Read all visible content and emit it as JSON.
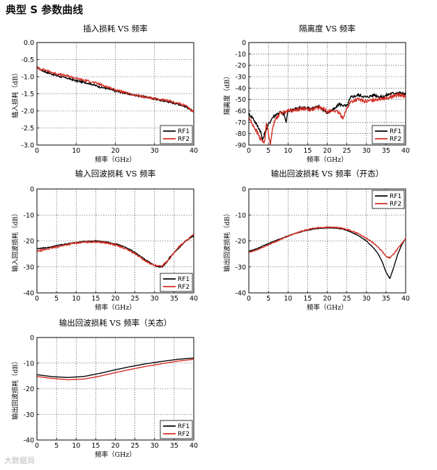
{
  "page": {
    "title": "典型 S 参数曲线"
  },
  "watermark": {
    "text": "大数据局"
  },
  "chart_data": [
    {
      "id": "insertion-loss",
      "type": "line",
      "title": "插入损耗 VS 频率",
      "xlabel": "频率（GHz）",
      "ylabel": "插入损耗（dB）",
      "xlim": [
        0,
        40
      ],
      "ylim": [
        -3,
        0
      ],
      "xticks": [
        0,
        10,
        20,
        30,
        40
      ],
      "yticks": [
        0,
        -0.5,
        -1,
        -1.5,
        -2,
        -2.5,
        -3
      ],
      "ytick_labels": [
        "0.0",
        "-0.5",
        "-1.0",
        "-1.5",
        "-2.0",
        "-2.5",
        "-3.0"
      ],
      "grid": true,
      "legend": "bottom-right",
      "series": [
        {
          "name": "RF1",
          "color": "#000000",
          "noise": 0.025,
          "x": [
            0,
            1,
            2,
            4,
            6,
            8,
            10,
            12,
            14,
            16,
            18,
            20,
            22,
            24,
            26,
            28,
            30,
            32,
            34,
            36,
            38,
            39,
            40
          ],
          "y": [
            -0.72,
            -0.8,
            -0.85,
            -0.93,
            -1.0,
            -1.05,
            -1.12,
            -1.16,
            -1.22,
            -1.3,
            -1.35,
            -1.42,
            -1.47,
            -1.52,
            -1.56,
            -1.6,
            -1.65,
            -1.7,
            -1.75,
            -1.8,
            -1.88,
            -1.95,
            -2.05
          ]
        },
        {
          "name": "RF2",
          "color": "#d42a20",
          "noise": 0.03,
          "x": [
            0,
            1,
            2,
            4,
            6,
            8,
            10,
            12,
            14,
            16,
            18,
            20,
            22,
            24,
            26,
            28,
            30,
            32,
            34,
            36,
            38,
            39,
            40
          ],
          "y": [
            -0.75,
            -0.78,
            -0.8,
            -0.88,
            -0.94,
            -0.98,
            -1.05,
            -1.1,
            -1.15,
            -1.22,
            -1.3,
            -1.38,
            -1.45,
            -1.52,
            -1.56,
            -1.6,
            -1.64,
            -1.68,
            -1.72,
            -1.78,
            -1.85,
            -1.95,
            -2.02
          ]
        }
      ]
    },
    {
      "id": "isolation",
      "type": "line",
      "title": "隔离度 VS 频率",
      "xlabel": "频率（GHz）",
      "ylabel": "隔离度（dB）",
      "xlim": [
        0,
        40
      ],
      "ylim": [
        -90,
        0
      ],
      "xticks": [
        0,
        5,
        10,
        15,
        20,
        25,
        30,
        35,
        40
      ],
      "yticks": [
        0,
        -10,
        -20,
        -30,
        -40,
        -50,
        -60,
        -70,
        -80,
        -90
      ],
      "ytick_labels": [
        "0",
        "-10",
        "-20",
        "-30",
        "-40",
        "-50",
        "-60",
        "-70",
        "-80",
        "-90"
      ],
      "grid": true,
      "legend": "bottom-right",
      "series": [
        {
          "name": "RF1",
          "color": "#000000",
          "noise": 1.2,
          "x": [
            0,
            1,
            2,
            3,
            3.5,
            4,
            5,
            6,
            7,
            8,
            9,
            9.5,
            10,
            12,
            14,
            16,
            18,
            20,
            22,
            23,
            24,
            25,
            26,
            28,
            30,
            32,
            34,
            36,
            38,
            40
          ],
          "y": [
            -63,
            -66,
            -72,
            -78,
            -86,
            -80,
            -72,
            -66,
            -63,
            -61,
            -63,
            -70,
            -60,
            -58,
            -57,
            -58,
            -56,
            -62,
            -58,
            -54,
            -55,
            -56,
            -48,
            -46,
            -48,
            -46,
            -48,
            -45,
            -44,
            -45
          ]
        },
        {
          "name": "RF2",
          "color": "#d42a20",
          "noise": 1.5,
          "x": [
            0,
            1,
            2,
            3,
            4,
            4.5,
            5,
            5.5,
            6,
            7,
            8,
            10,
            12,
            14,
            16,
            18,
            20,
            22,
            23,
            24,
            25,
            26,
            28,
            30,
            32,
            34,
            36,
            38,
            40
          ],
          "y": [
            -66,
            -72,
            -78,
            -85,
            -88,
            -70,
            -80,
            -90,
            -75,
            -66,
            -62,
            -60,
            -59,
            -58,
            -59,
            -57,
            -60,
            -60,
            -62,
            -66,
            -58,
            -52,
            -50,
            -52,
            -50,
            -49,
            -48,
            -46,
            -47
          ]
        }
      ]
    },
    {
      "id": "input-return-loss",
      "type": "line",
      "title": "输入回波损耗 VS 频率",
      "xlabel": "频率（GHz）",
      "ylabel": "输入回波损耗（dB）",
      "xlim": [
        0,
        40
      ],
      "ylim": [
        -40,
        0
      ],
      "xticks": [
        0,
        5,
        10,
        15,
        20,
        25,
        30,
        35,
        40
      ],
      "yticks": [
        0,
        -10,
        -20,
        -30,
        -40
      ],
      "ytick_labels": [
        "0",
        "-10",
        "-20",
        "-30",
        "-40"
      ],
      "grid": true,
      "legend": "bottom-right",
      "series": [
        {
          "name": "RF1",
          "color": "#000000",
          "noise": 0.15,
          "x": [
            0,
            3,
            6,
            9,
            12,
            15,
            18,
            21,
            24,
            26,
            28,
            30,
            31,
            32,
            33,
            34,
            36,
            38,
            40
          ],
          "y": [
            -23,
            -22.5,
            -21.5,
            -20.8,
            -20.2,
            -20,
            -20.5,
            -21.5,
            -23.5,
            -25.5,
            -27.5,
            -29.5,
            -30,
            -30,
            -28.5,
            -26,
            -23,
            -20,
            -18
          ]
        },
        {
          "name": "RF2",
          "color": "#d42a20",
          "noise": 0.3,
          "x": [
            0,
            3,
            6,
            9,
            12,
            15,
            18,
            21,
            24,
            26,
            28,
            30,
            31,
            32,
            33,
            34,
            36,
            38,
            40
          ],
          "y": [
            -24,
            -23,
            -22,
            -21,
            -20.5,
            -20.3,
            -20.8,
            -22,
            -24,
            -26,
            -28,
            -29.5,
            -29.8,
            -29.5,
            -28,
            -26.5,
            -22.5,
            -20,
            -17.5
          ]
        }
      ]
    },
    {
      "id": "output-return-loss-on",
      "type": "line",
      "title": "输出回波损耗 VS 频率（开态）",
      "xlabel": "频率（GHz）",
      "ylabel": "输出回波损耗（dB）",
      "xlim": [
        0,
        40
      ],
      "ylim": [
        -40,
        0
      ],
      "xticks": [
        0,
        5,
        10,
        15,
        20,
        25,
        30,
        35,
        40
      ],
      "yticks": [
        0,
        -10,
        -20,
        -30,
        -40
      ],
      "ytick_labels": [
        "0",
        "-10",
        "-20",
        "-30",
        "-40"
      ],
      "grid": true,
      "legend": "top-right",
      "series": [
        {
          "name": "RF1",
          "color": "#000000",
          "noise": 0.1,
          "x": [
            0,
            2,
            5,
            8,
            11,
            14,
            17,
            20,
            22,
            24,
            26,
            28,
            30,
            32,
            33,
            34,
            35,
            36,
            37,
            38,
            39,
            40
          ],
          "y": [
            -24,
            -23,
            -21,
            -19.2,
            -17.5,
            -16.2,
            -15.3,
            -15,
            -15,
            -15.5,
            -16.5,
            -18,
            -20,
            -23,
            -25,
            -28,
            -32,
            -34.5,
            -30,
            -25,
            -21.5,
            -19
          ]
        },
        {
          "name": "RF2",
          "color": "#d42a20",
          "noise": 0.2,
          "x": [
            0,
            2,
            5,
            8,
            11,
            14,
            17,
            20,
            22,
            24,
            26,
            28,
            30,
            32,
            34,
            35,
            36,
            37,
            38,
            39,
            40
          ],
          "y": [
            -24.5,
            -23.5,
            -21.5,
            -19.5,
            -17.5,
            -16,
            -15,
            -14.7,
            -14.8,
            -15.2,
            -16,
            -17.2,
            -19,
            -21,
            -24,
            -26,
            -26.5,
            -25,
            -23,
            -21,
            -19
          ]
        }
      ]
    },
    {
      "id": "output-return-loss-off",
      "type": "line",
      "title": "输出回波损耗 VS 频率（关态）",
      "xlabel": "频率（GHz）",
      "ylabel": "输出回波损耗（dB）",
      "xlim": [
        0,
        40
      ],
      "ylim": [
        -40,
        0
      ],
      "xticks": [
        0,
        5,
        10,
        15,
        20,
        25,
        30,
        35,
        40
      ],
      "yticks": [
        0,
        -10,
        -20,
        -30,
        -40
      ],
      "ytick_labels": [
        "0",
        "-10",
        "-20",
        "-30",
        "-40"
      ],
      "grid": true,
      "legend": "bottom-right",
      "series": [
        {
          "name": "RF1",
          "color": "#000000",
          "noise": 0,
          "x": [
            0,
            4,
            8,
            12,
            16,
            20,
            24,
            28,
            32,
            36,
            40
          ],
          "y": [
            -14.5,
            -15.3,
            -15.6,
            -15.2,
            -14,
            -12.6,
            -11.3,
            -10.2,
            -9.3,
            -8.5,
            -8
          ]
        },
        {
          "name": "RF2",
          "color": "#d42a20",
          "noise": 0,
          "x": [
            0,
            4,
            8,
            12,
            16,
            20,
            24,
            28,
            32,
            36,
            40
          ],
          "y": [
            -15.2,
            -16,
            -16.5,
            -16.2,
            -15.1,
            -13.7,
            -12.4,
            -11.2,
            -10.2,
            -9.2,
            -8.5
          ]
        }
      ]
    }
  ]
}
